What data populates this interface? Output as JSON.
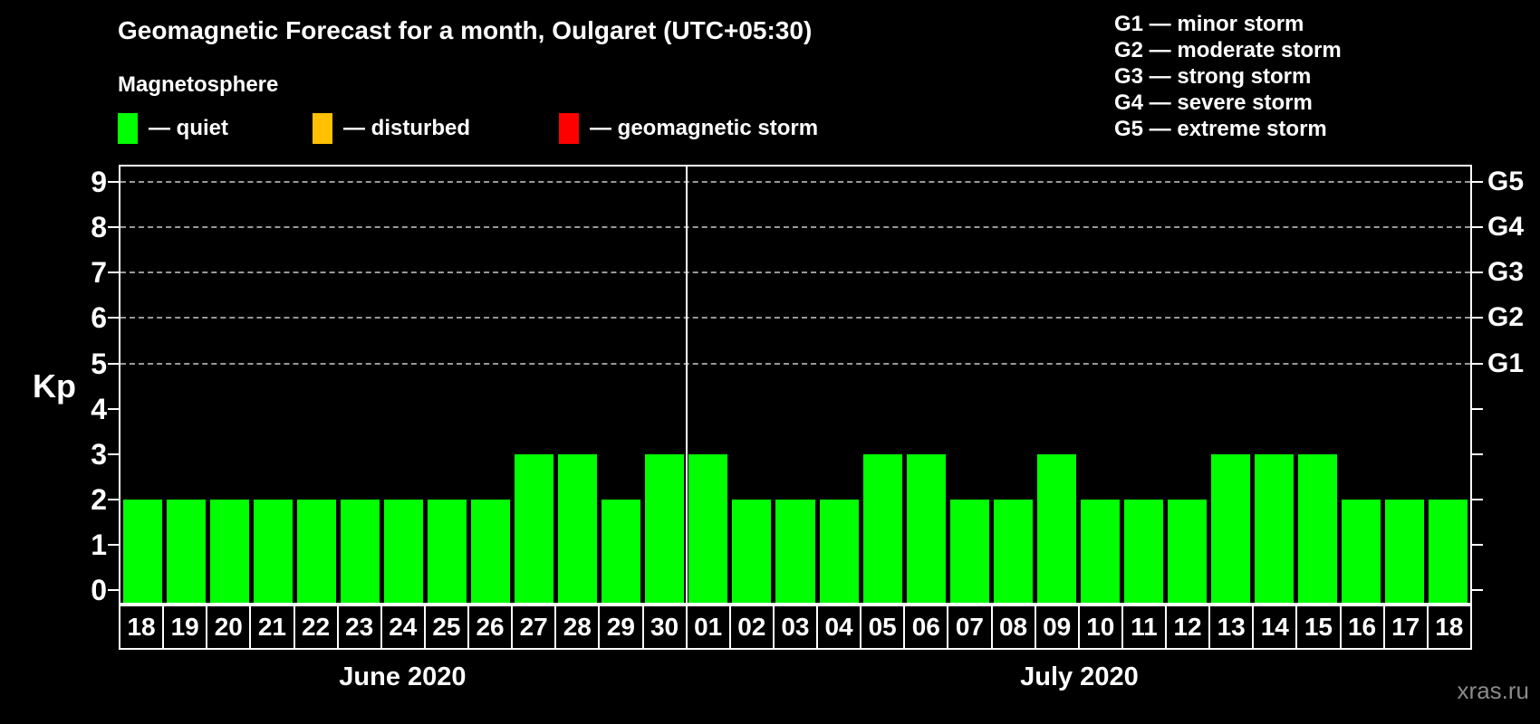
{
  "header": {
    "title": "Geomagnetic Forecast for a month, Oulgaret (UTC+05:30)",
    "subtitle": "Magnetosphere"
  },
  "legend": {
    "items": [
      {
        "name": "quiet",
        "label": "— quiet",
        "color": "#00ff00"
      },
      {
        "name": "disturbed",
        "label": "— disturbed",
        "color": "#ffc000"
      },
      {
        "name": "geomagnetic-storm",
        "label": "— geomagnetic storm",
        "color": "#ff0000"
      }
    ]
  },
  "g_scale_legend": {
    "items": [
      "G1 — minor storm",
      "G2 — moderate storm",
      "G3 — strong storm",
      "G4 — severe storm",
      "G5 — extreme storm"
    ]
  },
  "watermark": "xras.ru",
  "chart_data": {
    "type": "bar",
    "title": "Geomagnetic Forecast for a month, Oulgaret (UTC+05:30)",
    "ylabel": "Kp",
    "xlabel": "",
    "y_ticks": [
      0,
      1,
      2,
      3,
      4,
      5,
      6,
      7,
      8,
      9
    ],
    "ylim": [
      -0.3,
      9.4
    ],
    "grid": "horizontal dashed lines at Kp 5 through 9",
    "gridline_values": [
      5,
      6,
      7,
      8,
      9
    ],
    "right_axis": [
      {
        "label": "G1",
        "value": 5
      },
      {
        "label": "G2",
        "value": 6
      },
      {
        "label": "G3",
        "value": 7
      },
      {
        "label": "G4",
        "value": 8
      },
      {
        "label": "G5",
        "value": 9
      }
    ],
    "bar_color": "#00ff00",
    "bar_color_meaning": "quiet",
    "months": [
      {
        "label": "June 2020",
        "categories": [
          "18",
          "19",
          "20",
          "21",
          "22",
          "23",
          "24",
          "25",
          "26",
          "27",
          "28",
          "29",
          "30"
        ],
        "values": [
          2,
          2,
          2,
          2,
          2,
          2,
          2,
          2,
          2,
          3,
          3,
          2,
          3
        ]
      },
      {
        "label": "July 2020",
        "categories": [
          "01",
          "02",
          "03",
          "04",
          "05",
          "06",
          "07",
          "08",
          "09",
          "10",
          "11",
          "12",
          "13",
          "14",
          "15",
          "16",
          "17",
          "18"
        ],
        "values": [
          3,
          2,
          2,
          2,
          3,
          3,
          2,
          2,
          3,
          2,
          2,
          2,
          3,
          3,
          3,
          2,
          2,
          2
        ]
      }
    ]
  }
}
